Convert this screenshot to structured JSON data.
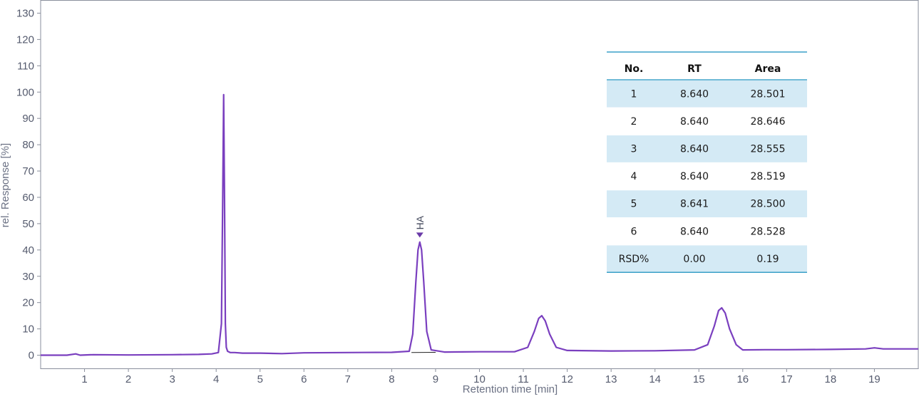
{
  "chart_data": {
    "type": "line",
    "title": "",
    "xlabel": "Retention time [min]",
    "ylabel": "rel. Response [%]",
    "xlim": [
      0,
      20
    ],
    "ylim": [
      -5,
      135
    ],
    "x_ticks": [
      1,
      2,
      3,
      4,
      5,
      6,
      7,
      8,
      9,
      10,
      11,
      12,
      13,
      14,
      15,
      16,
      17,
      18,
      19
    ],
    "y_ticks": [
      0,
      10,
      20,
      30,
      40,
      50,
      60,
      70,
      80,
      90,
      100,
      110,
      120,
      130
    ],
    "grid": false,
    "legend": "none",
    "series": [
      {
        "color": "#7a3fbf",
        "x": [
          0.0,
          0.6,
          0.8,
          0.9,
          1.2,
          2.0,
          3.0,
          3.6,
          3.9,
          4.05,
          4.12,
          4.15,
          4.17,
          4.19,
          4.21,
          4.23,
          4.26,
          4.32,
          4.42,
          4.6,
          5.0,
          5.5,
          6.0,
          7.0,
          8.0,
          8.4,
          8.48,
          8.55,
          8.6,
          8.64,
          8.68,
          8.73,
          8.8,
          8.9,
          9.2,
          10.0,
          10.8,
          11.1,
          11.25,
          11.35,
          11.42,
          11.5,
          11.6,
          11.75,
          12.0,
          13.0,
          14.0,
          14.9,
          15.2,
          15.35,
          15.45,
          15.52,
          15.6,
          15.7,
          15.85,
          16.0,
          16.5,
          17.0,
          18.0,
          18.8,
          19.0,
          19.2,
          20.0
        ],
        "y": [
          0.0,
          0.0,
          0.5,
          0.0,
          0.2,
          0.1,
          0.2,
          0.3,
          0.5,
          1.0,
          12.0,
          60.0,
          99.0,
          60.0,
          12.0,
          3.0,
          1.5,
          1.0,
          1.0,
          0.8,
          0.8,
          0.6,
          0.9,
          1.0,
          1.1,
          1.5,
          8.0,
          28.0,
          40.0,
          43.0,
          40.0,
          28.0,
          9.0,
          2.0,
          1.2,
          1.3,
          1.3,
          3.0,
          9.0,
          14.0,
          15.0,
          13.0,
          8.0,
          3.0,
          1.8,
          1.6,
          1.7,
          2.0,
          4.0,
          11.0,
          17.0,
          18.0,
          16.0,
          10.0,
          4.0,
          2.0,
          2.1,
          2.1,
          2.2,
          2.4,
          2.8,
          2.4,
          2.4
        ]
      }
    ],
    "baselines": [
      {
        "x": [
          8.45,
          9.0
        ],
        "y": [
          1.0,
          1.1
        ]
      }
    ],
    "annotations": [
      {
        "text": "HA",
        "x": 8.64,
        "y": 45
      }
    ],
    "table": {
      "placement": "top-right",
      "columns": [
        "No.",
        "RT",
        "Area"
      ],
      "rows": [
        [
          "1",
          "8.640",
          "28.501"
        ],
        [
          "2",
          "8.640",
          "28.646"
        ],
        [
          "3",
          "8.640",
          "28.555"
        ],
        [
          "4",
          "8.640",
          "28.519"
        ],
        [
          "5",
          "8.641",
          "28.500"
        ],
        [
          "6",
          "8.640",
          "28.528"
        ],
        [
          "RSD%",
          "0.00",
          "0.19"
        ]
      ],
      "rule_color": "#3aa0c8",
      "stripe_color": "#d4eaf5"
    }
  }
}
